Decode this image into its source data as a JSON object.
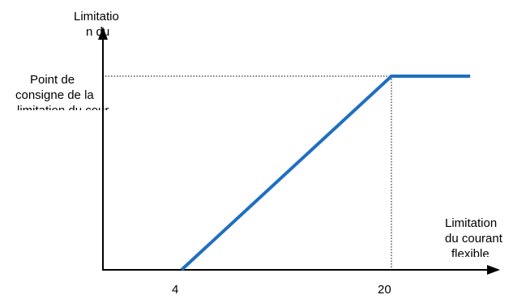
{
  "colors": {
    "curve": "#1F6FC0",
    "axis": "#000000",
    "guide": "#000000",
    "text": "#000000",
    "background": "#FFFFFF"
  },
  "y_axis_label_lines": [
    "Limitatio",
    "n du"
  ],
  "x_axis_label_lines": [
    "Limitation",
    "du courant",
    "flexible"
  ],
  "setpoint_label_lines": [
    "Point de",
    "consigne de la",
    "limitation du courant"
  ],
  "tick_labels": [
    "4",
    "20"
  ],
  "chart_data": {
    "type": "line",
    "x_ticks": [
      4,
      20
    ],
    "series": [
      {
        "points": [
          [
            4,
            0
          ],
          [
            20,
            1
          ],
          [
            26,
            1
          ]
        ]
      }
    ],
    "setpoint_level": 1,
    "guides": [
      "horizontal dotted line from y-axis to curve at setpoint",
      "vertical dotted line from x = 20 down to x-axis"
    ]
  }
}
